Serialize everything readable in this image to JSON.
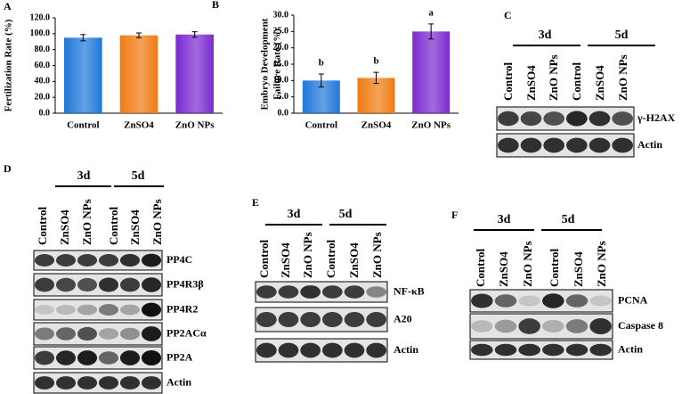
{
  "chart_data": [
    {
      "type": "bar",
      "panel": "A",
      "ylabel": "Fertilization Rate (%)",
      "categories": [
        "Control",
        "ZnSO4",
        "ZnO NPs"
      ],
      "values": [
        95,
        98,
        99
      ],
      "errors": [
        4,
        3,
        3.5
      ],
      "colors": [
        "#1f78d8",
        "#f07a12",
        "#7b2ad0"
      ],
      "ylim": [
        0,
        120
      ],
      "yticks": [
        {
          "value": 0,
          "label": "0.0"
        },
        {
          "value": 20,
          "label": "20.0"
        },
        {
          "value": 40,
          "label": "40.0"
        },
        {
          "value": 60,
          "label": "60.0"
        },
        {
          "value": 80,
          "label": "80.0"
        },
        {
          "value": 100,
          "label": "100.0"
        },
        {
          "value": 120,
          "label": "120.0"
        }
      ]
    },
    {
      "type": "bar",
      "panel": "B",
      "ylabel": [
        "Embryo Development",
        "Failure Rate (%)"
      ],
      "categories": [
        "Control",
        "ZnSO4",
        "ZnO NPs"
      ],
      "values": [
        10,
        10.8,
        25
      ],
      "errors": [
        2,
        1.7,
        2.3
      ],
      "annotations": [
        "b",
        "b",
        "a"
      ],
      "colors": [
        "#1f78d8",
        "#f07a12",
        "#7b2ad0"
      ],
      "ylim": [
        0,
        30
      ],
      "yticks": [
        {
          "value": 0,
          "label": "0.0"
        },
        {
          "value": 5,
          "label": "5.0"
        },
        {
          "value": 10,
          "label": "10.0"
        },
        {
          "value": 15,
          "label": "15.0"
        },
        {
          "value": 20,
          "label": "20.0"
        },
        {
          "value": 25,
          "label": "25.0"
        },
        {
          "value": 30,
          "label": "30.0"
        }
      ]
    }
  ],
  "panels": [
    {
      "letter": "C",
      "groups": [
        "3d",
        "5d"
      ],
      "lanes": [
        "Control",
        "ZnSO4",
        "ZnO NPs",
        "Control",
        "ZnSO4",
        "ZnO NPs"
      ],
      "rows": [
        "γ-H2AX",
        "Actin"
      ]
    },
    {
      "letter": "D",
      "groups": [
        "3d",
        "5d"
      ],
      "lanes": [
        "Control",
        "ZnSO4",
        "ZnO NPs",
        "Control",
        "ZnSO4",
        "ZnO NPs"
      ],
      "rows": [
        "PP4C",
        "PP4R3β",
        "PP4R2",
        "PP2ACα",
        "PP2A",
        "Actin"
      ]
    },
    {
      "letter": "E",
      "groups": [
        "3d",
        "5d"
      ],
      "lanes": [
        "Control",
        "ZnSO4",
        "ZnO NPs",
        "Control",
        "ZnSO4",
        "ZnO NPs"
      ],
      "rows": [
        "NF-κB",
        "A20",
        "Actin"
      ]
    },
    {
      "letter": "F",
      "groups": [
        "3d",
        "5d"
      ],
      "lanes": [
        "Control",
        "ZnSO4",
        "ZnO NPs",
        "Control",
        "ZnSO4",
        "ZnO NPs"
      ],
      "rows": [
        "PCNA",
        "Caspase 8",
        "Actin"
      ]
    }
  ]
}
